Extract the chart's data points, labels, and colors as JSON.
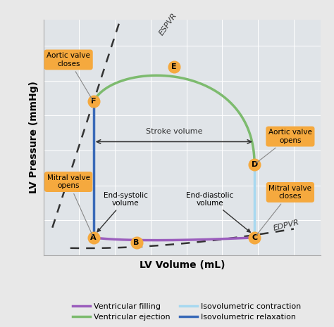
{
  "background_color": "#e8e8e8",
  "plot_bg_color": "#e0e4e8",
  "xlabel": "LV Volume (mL)",
  "ylabel": "LV Pressure (mmHg)",
  "points": {
    "A": [
      28,
      10
    ],
    "B": [
      52,
      7
    ],
    "C": [
      118,
      10
    ],
    "D": [
      118,
      52
    ],
    "E": [
      73,
      108
    ],
    "F": [
      28,
      88
    ]
  },
  "colors": {
    "ventricular_filling": "#9b5ebd",
    "ventricular_ejection": "#7dbb6e",
    "isovolumetric_contraction": "#a8d8f0",
    "isovolumetric_relaxation": "#3a6ab8"
  },
  "espvr_color": "#333333",
  "edpvr_color": "#333333",
  "annotation_bg": "#f5a93e",
  "xlim": [
    0,
    155
  ],
  "ylim": [
    0,
    135
  ],
  "grid_color": "#ffffff",
  "spine_color": "#aaaaaa"
}
